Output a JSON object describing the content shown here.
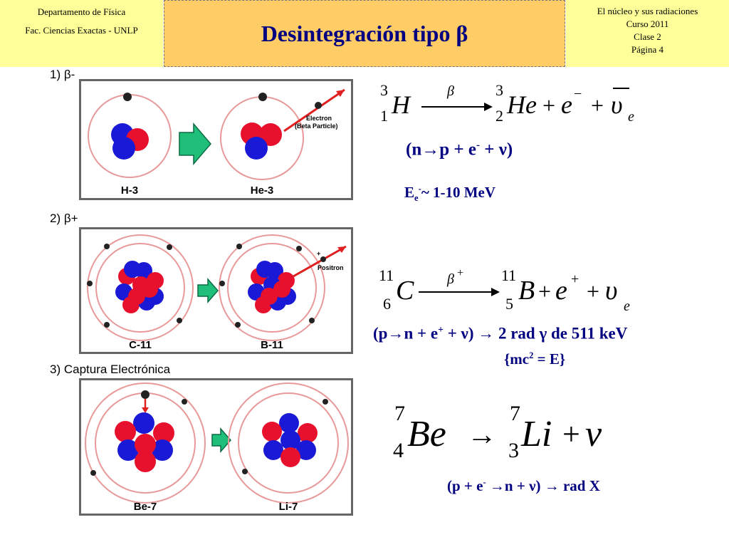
{
  "header": {
    "left_line1": "Departamento de Física",
    "left_line2": "Fac. Ciencias Exactas - UNLP",
    "title": "Desintegración tipo β",
    "right_line1": "El núcleo y sus radiaciones",
    "right_line2": "Curso 2011",
    "right_line3": "Clase 2",
    "right_line4": "Página 4"
  },
  "sections": {
    "s1_label": "1) β-",
    "s2_label": "2) β+",
    "s3_label": "3) Captura Electrónica"
  },
  "panel1": {
    "left_caption": "H-3",
    "right_caption": "He-3",
    "annot_line1": "Electron",
    "annot_line2": "(Beta Particle)"
  },
  "panel2": {
    "left_caption": "C-11",
    "right_caption": "B-11",
    "annot": "Positron",
    "plus": "+"
  },
  "panel3": {
    "left_caption": "Be-7",
    "right_caption": "Li-7"
  },
  "eq1": {
    "parent_mass": "3",
    "parent_z": "1",
    "parent": "H",
    "arrow_label": "β",
    "daughter_mass": "3",
    "daughter_z": "2",
    "daughter": "He",
    "plus1": "+",
    "electron": "e",
    "electron_charge": "−",
    "plus2": "+",
    "neutrino": "υ",
    "neutrino_sub": "e",
    "reaction_main": "(n→p + e",
    "reaction_sup": "-",
    "reaction_tail": " + ν)",
    "energy_main": "E",
    "energy_sub": "e",
    "energy_sup": "-",
    "energy_tail": "~ 1-10 MeV"
  },
  "eq2": {
    "parent_mass": "11",
    "parent_z": "6",
    "parent": "C",
    "arrow_label": "β",
    "arrow_label_sup": "+",
    "daughter_mass": "11",
    "daughter_z": "5",
    "daughter": "B",
    "plus1": "+",
    "positron": "e",
    "positron_charge": "+",
    "plus2": "+",
    "neutrino": "υ",
    "neutrino_sub": "e",
    "reaction_main": "(p→n + e",
    "reaction_sup": "+",
    "reaction_tail": " + ν) → 2 rad γ de 511 keV",
    "mc_open": "{mc",
    "mc_sup": "2",
    "mc_tail": " = E}"
  },
  "eq3": {
    "parent_mass": "7",
    "parent_z": "4",
    "parent": "Be",
    "arrow": "→",
    "daughter_mass": "7",
    "daughter_z": "3",
    "daughter": "Li",
    "plus": "+",
    "neutrino": "ν",
    "reaction_main": "(p + e",
    "reaction_sup": "-",
    "reaction_tail": " →n + ν) → rad X"
  },
  "colors": {
    "proton": "#e8112d",
    "neutron": "#1a1ad6",
    "electron": "#222222",
    "header_bg": "#ffff99",
    "title_bg": "#ffcc66",
    "title_text": "#000080",
    "arrow_green": "#1fbf7a",
    "beta_arrow": "#e02020"
  }
}
